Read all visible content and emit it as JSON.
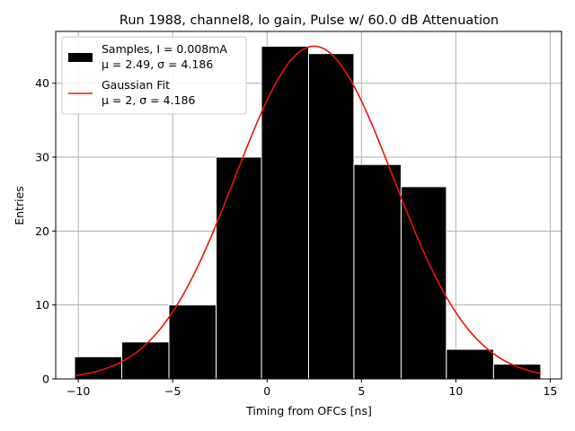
{
  "chart_data": {
    "type": "bar",
    "title": "Run 1988, channel8, lo gain, Pulse w/ 60.0 dB Attenuation",
    "xlabel": "Timing from OFCs [ns]",
    "ylabel": "Entries",
    "xlim": [
      -11.2,
      15.6
    ],
    "ylim": [
      0,
      47
    ],
    "xticks": [
      -10,
      -5,
      0,
      5,
      10,
      15
    ],
    "yticks": [
      0,
      10,
      20,
      30,
      40
    ],
    "grid": true,
    "legend_position": "top-left",
    "bins": [
      {
        "x0": -10.2,
        "x1": -7.7,
        "count": 3
      },
      {
        "x0": -7.7,
        "x1": -5.2,
        "count": 5
      },
      {
        "x0": -5.2,
        "x1": -2.7,
        "count": 10
      },
      {
        "x0": -2.7,
        "x1": -0.3,
        "count": 30
      },
      {
        "x0": -0.3,
        "x1": 2.2,
        "count": 45
      },
      {
        "x0": 2.2,
        "x1": 4.6,
        "count": 44
      },
      {
        "x0": 4.6,
        "x1": 7.1,
        "count": 29
      },
      {
        "x0": 7.1,
        "x1": 9.5,
        "count": 26
      },
      {
        "x0": 9.5,
        "x1": 12.0,
        "count": 4
      },
      {
        "x0": 12.0,
        "x1": 14.5,
        "count": 2
      }
    ],
    "fit": {
      "amplitude": 45,
      "mu": 2.49,
      "sigma": 4.186,
      "x_range": [
        -10.2,
        14.5
      ]
    },
    "legend": [
      {
        "label_line1": "Samples, I = 0.008mA",
        "label_line2": "μ = 2.49, σ = 4.186",
        "color": "#000000",
        "kind": "bar"
      },
      {
        "label_line1": "Gaussian Fit",
        "label_line2": "μ = 2, σ = 4.186",
        "color": "#e8140f",
        "kind": "line"
      }
    ],
    "colors": {
      "bars": "#000000",
      "bar_edge": "#ffffff",
      "fit": "#e8140f",
      "grid": "#b0b0b0"
    }
  }
}
